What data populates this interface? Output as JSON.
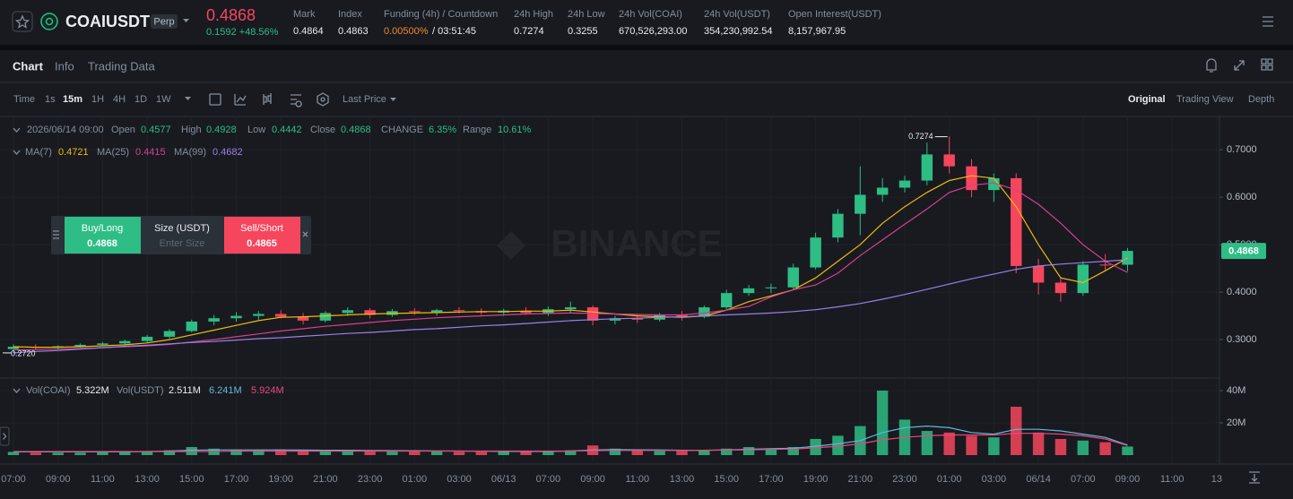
{
  "header": {
    "symbol": "COAIUSDT",
    "badge": "Perp",
    "last_price": "0.4868",
    "change": "0.1592 +48.56%",
    "stats": [
      {
        "label": "Mark",
        "value": "0.4864"
      },
      {
        "label": "Index",
        "value": "0.4863"
      },
      {
        "label": "Funding (4h) / Countdown",
        "value": "0.00500%",
        "extra": "/ 03:51:45"
      },
      {
        "label": "24h High",
        "value": "0.7274"
      },
      {
        "label": "24h Low",
        "value": "0.3255"
      },
      {
        "label": "24h Vol(COAI)",
        "value": "670,526,293.00"
      },
      {
        "label": "24h Vol(USDT)",
        "value": "354,230,992.54"
      },
      {
        "label": "Open Interest(USDT)",
        "value": "8,157,967.95"
      }
    ]
  },
  "tabs": [
    "Chart",
    "Info",
    "Trading Data"
  ],
  "toolbar": {
    "label": "Time",
    "intervals": [
      "1s",
      "15m",
      "1H",
      "4H",
      "1D",
      "1W"
    ],
    "price_type": "Last Price",
    "views": [
      "Original",
      "Trading View",
      "Depth"
    ]
  },
  "ohlc_legend": {
    "date": "2026/06/14 09:00",
    "items": [
      {
        "label": "Open",
        "value": "0.4577"
      },
      {
        "label": "High",
        "value": "0.4928"
      },
      {
        "label": "Low",
        "value": "0.4442"
      },
      {
        "label": "Close",
        "value": "0.4868"
      },
      {
        "label": "CHANGE",
        "value": "6.35%"
      },
      {
        "label": "Range",
        "value": "10.61%"
      }
    ]
  },
  "order_panel": {
    "buy": "Buy/Long",
    "buy_price": "0.4868",
    "size": "Size (USDT)",
    "size_placeholder": "Enter Size",
    "sell": "Sell/Short",
    "sell_price": "0.4865"
  },
  "watermark": "BINANCE",
  "chart_data": {
    "type": "candlestick",
    "categories": [
      "07:00",
      null,
      "09:00",
      null,
      "11:00",
      null,
      "13:00",
      null,
      "15:00",
      null,
      "17:00",
      null,
      "19:00",
      null,
      "21:00",
      null,
      "23:00",
      null,
      "01:00",
      null,
      "03:00",
      null,
      "06/13",
      null,
      "07:00",
      null,
      "09:00",
      null,
      "11:00",
      null,
      "13:00",
      null,
      "15:00",
      null,
      "17:00",
      null,
      "19:00",
      null,
      "21:00",
      null,
      "23:00",
      null,
      "01:00",
      null,
      "03:00",
      null,
      "06/14",
      null,
      "07:00",
      null,
      "09:00",
      null,
      "11:00",
      null,
      "13"
    ],
    "open": [
      0.28,
      0.285,
      0.283,
      0.286,
      0.289,
      0.292,
      0.297,
      0.306,
      0.318,
      0.338,
      0.345,
      0.35,
      0.354,
      0.348,
      0.34,
      0.356,
      0.362,
      0.352,
      0.36,
      0.358,
      0.362,
      0.36,
      0.357,
      0.361,
      0.356,
      0.364,
      0.368,
      0.34,
      0.345,
      0.342,
      0.352,
      0.348,
      0.368,
      0.398,
      0.408,
      0.41,
      0.452,
      0.515,
      0.565,
      0.605,
      0.62,
      0.635,
      0.69,
      0.665,
      0.615,
      0.64,
      0.455,
      0.42,
      0.398,
      0.458,
      0.4577,
      null,
      null,
      null,
      null
    ],
    "high": [
      0.29,
      0.29,
      0.288,
      0.292,
      0.295,
      0.3,
      0.31,
      0.322,
      0.342,
      0.352,
      0.358,
      0.36,
      0.362,
      0.356,
      0.36,
      0.368,
      0.366,
      0.364,
      0.366,
      0.365,
      0.368,
      0.366,
      0.365,
      0.368,
      0.37,
      0.38,
      0.372,
      0.35,
      0.352,
      0.356,
      0.36,
      0.372,
      0.405,
      0.415,
      0.418,
      0.46,
      0.525,
      0.575,
      0.665,
      0.64,
      0.645,
      0.715,
      0.7274,
      0.68,
      0.65,
      0.65,
      0.47,
      0.432,
      0.465,
      0.48,
      0.4928,
      null,
      null,
      null,
      null
    ],
    "low": [
      0.272,
      0.28,
      0.28,
      0.283,
      0.286,
      0.289,
      0.294,
      0.302,
      0.315,
      0.33,
      0.338,
      0.342,
      0.345,
      0.332,
      0.336,
      0.35,
      0.345,
      0.348,
      0.352,
      0.35,
      0.355,
      0.352,
      0.35,
      0.352,
      0.35,
      0.355,
      0.33,
      0.332,
      0.335,
      0.338,
      0.34,
      0.345,
      0.364,
      0.392,
      0.398,
      0.405,
      0.448,
      0.505,
      0.52,
      0.59,
      0.61,
      0.625,
      0.65,
      0.6,
      0.59,
      0.44,
      0.395,
      0.38,
      0.392,
      0.445,
      0.4442,
      null,
      null,
      null,
      null
    ],
    "close": [
      0.285,
      0.283,
      0.286,
      0.289,
      0.292,
      0.297,
      0.306,
      0.318,
      0.338,
      0.345,
      0.35,
      0.354,
      0.348,
      0.34,
      0.356,
      0.362,
      0.352,
      0.36,
      0.358,
      0.362,
      0.36,
      0.357,
      0.361,
      0.356,
      0.364,
      0.368,
      0.34,
      0.345,
      0.342,
      0.352,
      0.348,
      0.368,
      0.398,
      0.408,
      0.41,
      0.452,
      0.515,
      0.565,
      0.605,
      0.62,
      0.635,
      0.69,
      0.665,
      0.615,
      0.64,
      0.455,
      0.42,
      0.398,
      0.458,
      0.4577,
      0.4868,
      null,
      null,
      null,
      null
    ],
    "up_color": "#2ebd85",
    "down_color": "#f6465d",
    "ylim": [
      0.219,
      0.77
    ],
    "yticks": [
      {
        "value": 0.3,
        "label": "0.3000"
      },
      {
        "value": 0.4,
        "label": "0.4000"
      },
      {
        "value": 0.5,
        "label": "0.5000"
      },
      {
        "value": 0.6,
        "label": "0.6000"
      },
      {
        "value": 0.7,
        "label": "0.7000"
      }
    ],
    "grid": true,
    "price_tag": "0.4868",
    "high_label": "0.7274",
    "low_label": "0.2720",
    "series": [
      {
        "name": "MA(7)",
        "current": "0.4721",
        "color": "#f0b90b",
        "values": [
          0.285,
          0.284,
          0.284,
          0.285,
          0.287,
          0.289,
          0.293,
          0.3,
          0.31,
          0.32,
          0.33,
          0.34,
          0.347,
          0.348,
          0.35,
          0.352,
          0.354,
          0.355,
          0.356,
          0.357,
          0.358,
          0.359,
          0.359,
          0.36,
          0.36,
          0.362,
          0.358,
          0.354,
          0.35,
          0.348,
          0.347,
          0.35,
          0.362,
          0.38,
          0.392,
          0.405,
          0.43,
          0.465,
          0.5,
          0.545,
          0.58,
          0.61,
          0.635,
          0.645,
          0.64,
          0.58,
          0.5,
          0.43,
          0.42,
          0.445,
          0.4721,
          null,
          null,
          null,
          null
        ]
      },
      {
        "name": "MA(25)",
        "current": "0.4415",
        "color": "#d6408f",
        "values": [
          0.278,
          0.279,
          0.28,
          0.281,
          0.283,
          0.285,
          0.287,
          0.29,
          0.295,
          0.3,
          0.306,
          0.312,
          0.318,
          0.323,
          0.328,
          0.332,
          0.336,
          0.34,
          0.343,
          0.346,
          0.348,
          0.35,
          0.352,
          0.354,
          0.355,
          0.356,
          0.355,
          0.354,
          0.353,
          0.352,
          0.352,
          0.356,
          0.362,
          0.37,
          0.39,
          0.405,
          0.415,
          0.44,
          0.477,
          0.51,
          0.543,
          0.575,
          0.61,
          0.625,
          0.63,
          0.615,
          0.585,
          0.545,
          0.5,
          0.465,
          0.4415,
          null,
          null,
          null,
          null
        ]
      },
      {
        "name": "MA(99)",
        "current": "0.4682",
        "color": "#9b7fe6",
        "values": [
          0.272,
          0.275,
          0.277,
          0.28,
          0.283,
          0.286,
          0.288,
          0.291,
          0.294,
          0.296,
          0.299,
          0.302,
          0.304,
          0.307,
          0.31,
          0.313,
          0.315,
          0.318,
          0.321,
          0.323,
          0.326,
          0.329,
          0.331,
          0.334,
          0.337,
          0.34,
          0.342,
          0.344,
          0.345,
          0.347,
          0.348,
          0.35,
          0.352,
          0.354,
          0.356,
          0.359,
          0.363,
          0.369,
          0.376,
          0.385,
          0.395,
          0.406,
          0.417,
          0.428,
          0.438,
          0.448,
          0.455,
          0.459,
          0.462,
          0.465,
          0.4682,
          null,
          null,
          null,
          null
        ]
      }
    ],
    "volume": {
      "name": "Vol(COAI)",
      "current": "5.322M",
      "quote_name": "Vol(USDT)",
      "quote_current": "2.511M",
      "values": [
        2000000,
        1500000,
        1500000,
        1500000,
        1800000,
        2000000,
        2500000,
        3000000,
        5000000,
        4000000,
        3000000,
        3000000,
        3500000,
        3000000,
        3000000,
        3000000,
        2500000,
        2500000,
        2500000,
        2500000,
        2000000,
        2000000,
        2000000,
        2000000,
        2500000,
        3000000,
        6000000,
        4000000,
        3000000,
        2500000,
        2500000,
        3000000,
        4000000,
        5000000,
        4000000,
        5000000,
        10000000,
        12000000,
        18000000,
        40000000,
        22000000,
        15000000,
        14000000,
        12000000,
        11000000,
        30000000,
        14000000,
        10000000,
        9000000,
        8000000,
        5322000,
        null,
        null,
        null,
        null
      ],
      "ylim": [
        0,
        45000000
      ],
      "yticks": [
        {
          "value": 20000000,
          "label": "20M"
        },
        {
          "value": 40000000,
          "label": "40M"
        }
      ],
      "series": [
        {
          "current": "6.241M",
          "color": "#5fb8d9",
          "values": [
            2000000,
            2000000,
            2000000,
            2000000,
            2000000,
            2000000,
            2200000,
            2500000,
            3000000,
            3200000,
            3200000,
            3200000,
            3200000,
            3100000,
            3000000,
            3000000,
            2900000,
            2800000,
            2700000,
            2600000,
            2500000,
            2400000,
            2300000,
            2300000,
            2300000,
            2500000,
            3200000,
            3400000,
            3300000,
            3200000,
            3000000,
            3000000,
            3200000,
            3600000,
            4000000,
            4300000,
            5500000,
            7000000,
            9000000,
            14000000,
            17000000,
            18000000,
            17000000,
            14000000,
            13000000,
            16000000,
            16000000,
            15000000,
            13000000,
            11000000,
            6241000,
            null,
            null,
            null,
            null
          ]
        },
        {
          "current": "5.924M",
          "color": "#e8487a",
          "values": [
            2200000,
            2200000,
            2200000,
            2200000,
            2200000,
            2200000,
            2200000,
            2200000,
            2200000,
            2200000,
            2500000,
            2500000,
            2500000,
            2500000,
            2500000,
            2500000,
            2500000,
            2500000,
            2500000,
            2500000,
            2500000,
            2500000,
            2500000,
            2500000,
            2500000,
            2500000,
            2800000,
            2900000,
            2900000,
            2900000,
            2900000,
            3000000,
            3100000,
            3300000,
            3500000,
            3800000,
            4500000,
            5500000,
            7000000,
            9500000,
            11000000,
            12000000,
            12500000,
            12500000,
            12500000,
            13500000,
            13500000,
            13000000,
            12000000,
            10000000,
            5924000,
            null,
            null,
            null,
            null
          ]
        }
      ]
    }
  }
}
